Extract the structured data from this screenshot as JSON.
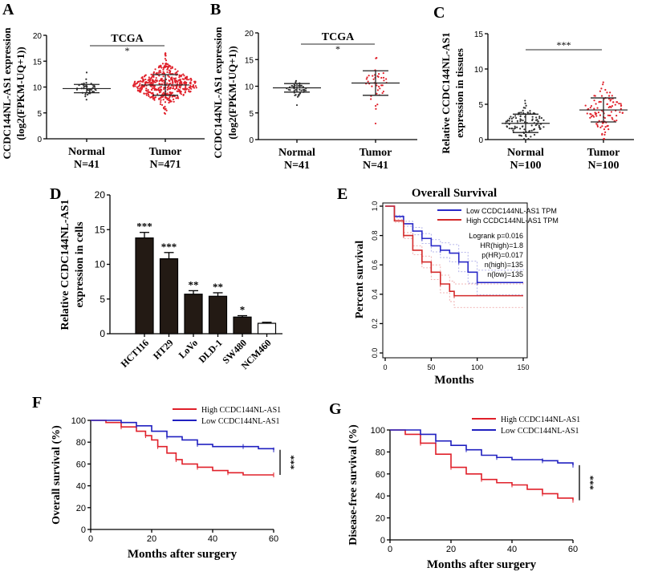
{
  "chart_data": [
    {
      "panel": "A",
      "type": "scatter",
      "title": "TCGA",
      "ylabel": [
        "CCDC144NL-AS1 expression",
        "(log2(FPKM-UQ+1))"
      ],
      "ylim": [
        0,
        20
      ],
      "yticks": [
        "0",
        "5",
        "10",
        "15",
        "20"
      ],
      "groups": [
        {
          "name": "Normal",
          "n_label": "N=41",
          "n": 41,
          "mean": 9.7,
          "sd": 0.8,
          "color": "#333333"
        },
        {
          "name": "Tumor",
          "n_label": "N=471",
          "n": 471,
          "mean": 10.4,
          "sd": 2.0,
          "color": "#e0202a"
        }
      ],
      "significance": "*"
    },
    {
      "panel": "B",
      "type": "scatter",
      "title": "TCGA",
      "ylabel": [
        "CCDC144NL-AS1 expression",
        "(log2(FPKM-UQ+1))"
      ],
      "ylim": [
        0,
        20
      ],
      "yticks": [
        "0",
        "5",
        "10",
        "15",
        "20"
      ],
      "groups": [
        {
          "name": "Normal",
          "n_label": "N=41",
          "n": 41,
          "mean": 9.7,
          "sd": 0.8,
          "color": "#333333"
        },
        {
          "name": "Tumor",
          "n_label": "N=41",
          "n": 41,
          "mean": 10.6,
          "sd": 2.3,
          "color": "#e0202a"
        }
      ],
      "significance": "*"
    },
    {
      "panel": "C",
      "type": "scatter",
      "title": "",
      "ylabel": [
        "Relative CCDC144NL-AS1",
        "expression in tissues"
      ],
      "ylim": [
        0,
        15
      ],
      "yticks": [
        "0",
        "5",
        "10",
        "15"
      ],
      "groups": [
        {
          "name": "Normal",
          "n_label": "N=100",
          "n": 100,
          "mean": 2.3,
          "sd": 1.3,
          "color": "#333333"
        },
        {
          "name": "Tumor",
          "n_label": "N=100",
          "n": 100,
          "mean": 4.2,
          "sd": 1.7,
          "color": "#e0202a"
        }
      ],
      "significance": "***"
    },
    {
      "panel": "D",
      "type": "bar",
      "ylabel": [
        "Relative CCDC144NL-AS1",
        "expression in cells"
      ],
      "ylim": [
        0,
        20
      ],
      "yticks": [
        "0",
        "5",
        "10",
        "15",
        "20"
      ],
      "categories": [
        "HCT116",
        "HT29",
        "LoVo",
        "DLD-1",
        "SW480",
        "NCM460"
      ],
      "values": [
        13.8,
        10.8,
        5.7,
        5.4,
        2.4,
        1.5
      ],
      "errors": [
        0.8,
        0.9,
        0.5,
        0.5,
        0.2,
        0.15
      ],
      "significance": [
        "***",
        "***",
        "**",
        "**",
        "*",
        ""
      ],
      "colors": [
        "#231a14",
        "#231a14",
        "#231a14",
        "#231a14",
        "#231a14",
        "#ffffff"
      ]
    },
    {
      "panel": "E",
      "type": "line",
      "title": "Overall Survival",
      "xlabel": "Months",
      "ylabel": "Percent survival",
      "xlim": [
        0,
        150
      ],
      "ylim": [
        0,
        1
      ],
      "xticks": [
        "0",
        "50",
        "100",
        "150"
      ],
      "yticks": [
        "0.0",
        "0.2",
        "0.4",
        "0.6",
        "0.8",
        "1.0"
      ],
      "series": [
        {
          "name": "Low CCDC144NL-AS1 TPM",
          "color": "#2a2ac8",
          "x": [
            0,
            10,
            20,
            30,
            40,
            50,
            60,
            70,
            80,
            90,
            100,
            150
          ],
          "y": [
            1,
            0.93,
            0.88,
            0.83,
            0.78,
            0.73,
            0.7,
            0.68,
            0.62,
            0.55,
            0.48,
            0.48
          ]
        },
        {
          "name": "High CCDC144NL-AS1 TPM",
          "color": "#d42a2a",
          "x": [
            0,
            10,
            20,
            30,
            40,
            50,
            60,
            70,
            75,
            150
          ],
          "y": [
            1,
            0.9,
            0.8,
            0.7,
            0.62,
            0.55,
            0.47,
            0.42,
            0.39,
            0.39
          ]
        }
      ],
      "stats": [
        "Logrank p=0.016",
        "HR(high)=1.8",
        "p(HR)=0.017",
        "n(high)=135",
        "n(low)=135"
      ]
    },
    {
      "panel": "F",
      "type": "line",
      "xlabel": "Months after surgery",
      "ylabel": "Overall survival (%)",
      "xlim": [
        0,
        60
      ],
      "ylim": [
        0,
        100
      ],
      "xticks": [
        "0",
        "20",
        "40",
        "60"
      ],
      "yticks": [
        "0",
        "20",
        "40",
        "60",
        "80",
        "100"
      ],
      "series": [
        {
          "name": "High CCDC144NL-AS1",
          "color": "#e0202a",
          "x": [
            0,
            5,
            10,
            15,
            18,
            20,
            22,
            25,
            28,
            30,
            35,
            40,
            45,
            50,
            60
          ],
          "y": [
            100,
            98,
            94,
            90,
            86,
            82,
            76,
            70,
            64,
            60,
            57,
            54,
            52,
            50,
            50
          ]
        },
        {
          "name": "Low CCDC144NL-AS1",
          "color": "#2020c0",
          "x": [
            0,
            10,
            15,
            20,
            25,
            30,
            35,
            40,
            50,
            55,
            60
          ],
          "y": [
            100,
            98,
            95,
            90,
            85,
            82,
            78,
            76,
            76,
            74,
            73
          ]
        }
      ],
      "significance": "***"
    },
    {
      "panel": "G",
      "type": "line",
      "xlabel": "Months after surgery",
      "ylabel": "Disease-free survival (%)",
      "xlim": [
        0,
        60
      ],
      "ylim": [
        0,
        100
      ],
      "xticks": [
        "0",
        "20",
        "40",
        "60"
      ],
      "yticks": [
        "0",
        "20",
        "40",
        "60",
        "80",
        "100"
      ],
      "series": [
        {
          "name": "High CCDC144NL-AS1",
          "color": "#e0202a",
          "x": [
            0,
            5,
            10,
            15,
            20,
            25,
            30,
            35,
            40,
            45,
            50,
            55,
            60
          ],
          "y": [
            100,
            96,
            88,
            78,
            66,
            60,
            55,
            52,
            50,
            46,
            42,
            38,
            36
          ]
        },
        {
          "name": "Low CCDC144NL-AS1",
          "color": "#2020c0",
          "x": [
            0,
            10,
            15,
            20,
            25,
            30,
            35,
            40,
            50,
            55,
            60
          ],
          "y": [
            100,
            96,
            90,
            86,
            82,
            77,
            75,
            73,
            72,
            70,
            68
          ]
        }
      ],
      "significance": "***"
    }
  ]
}
